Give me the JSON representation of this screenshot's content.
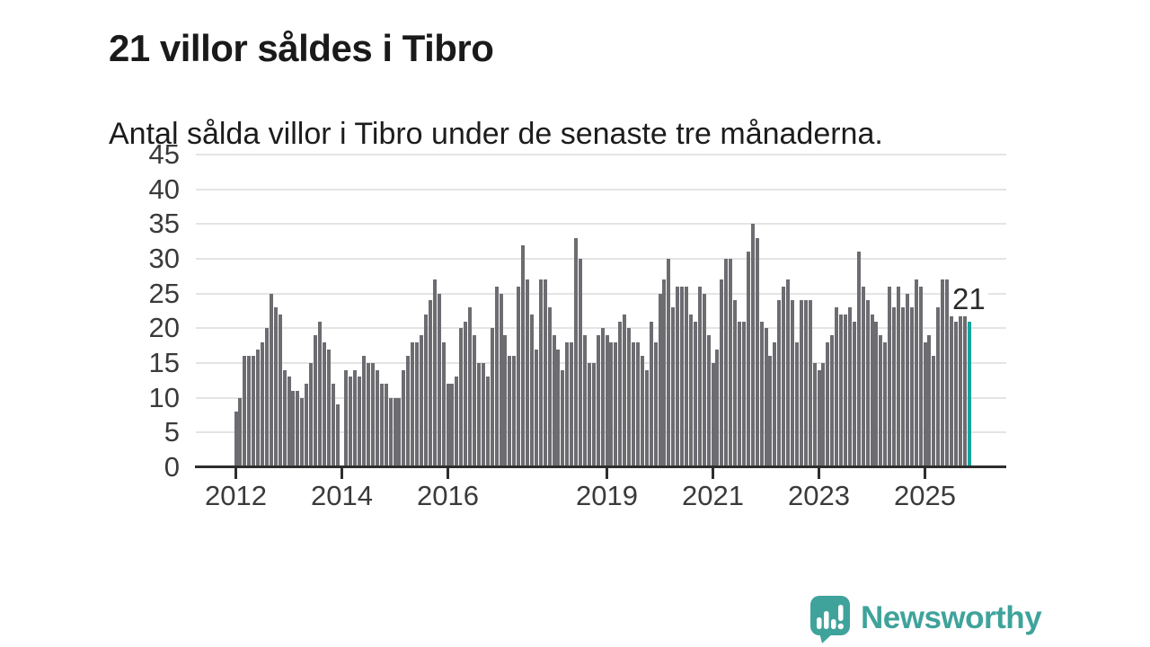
{
  "header": {
    "title": "21 villor såldes i Tibro",
    "subtitle": "Antal sålda villor i Tibro under de senaste tre månaderna."
  },
  "chart_data": {
    "type": "bar",
    "title": "21 villor såldes i Tibro",
    "subtitle": "Antal sålda villor i Tibro under de senaste tre månaderna.",
    "frequency": "monthly-rolling-3-months",
    "x_start": "2012-01",
    "x_end": "2025-11",
    "ylim": [
      0,
      45
    ],
    "grid": true,
    "y_ticks": [
      0,
      5,
      10,
      15,
      20,
      25,
      30,
      35,
      40,
      45
    ],
    "x_ticks": [
      {
        "label": "2012",
        "month_index": 0
      },
      {
        "label": "2014",
        "month_index": 24
      },
      {
        "label": "2016",
        "month_index": 48
      },
      {
        "label": "2019",
        "month_index": 84
      },
      {
        "label": "2021",
        "month_index": 108
      },
      {
        "label": "2023",
        "month_index": 132
      },
      {
        "label": "2025",
        "month_index": 156
      }
    ],
    "values": [
      8,
      10,
      16,
      16,
      16,
      17,
      18,
      20,
      25,
      23,
      22,
      14,
      13,
      11,
      11,
      10,
      12,
      15,
      19,
      21,
      18,
      17,
      12,
      9,
      0,
      14,
      13,
      14,
      13,
      16,
      15,
      15,
      14,
      12,
      12,
      10,
      10,
      10,
      14,
      16,
      18,
      18,
      19,
      22,
      24,
      27,
      25,
      18,
      12,
      12,
      13,
      20,
      21,
      23,
      19,
      15,
      15,
      13,
      20,
      26,
      25,
      19,
      16,
      16,
      26,
      32,
      27,
      22,
      17,
      27,
      27,
      23,
      19,
      17,
      14,
      18,
      18,
      33,
      30,
      19,
      15,
      15,
      19,
      20,
      19,
      18,
      18,
      21,
      22,
      20,
      18,
      18,
      16,
      14,
      21,
      18,
      25,
      27,
      30,
      23,
      26,
      26,
      26,
      22,
      21,
      26,
      25,
      19,
      15,
      17,
      27,
      30,
      30,
      24,
      21,
      21,
      31,
      35,
      33,
      21,
      20,
      16,
      18,
      24,
      26,
      27,
      24,
      18,
      24,
      24,
      24,
      15,
      14,
      15,
      18,
      19,
      23,
      22,
      22,
      23,
      21,
      31,
      26,
      24,
      22,
      21,
      19,
      18,
      26,
      23,
      26,
      23,
      25,
      23,
      27,
      26,
      18,
      19,
      16,
      23,
      27,
      27,
      22,
      21,
      22,
      22,
      21
    ],
    "highlight_last_bar": true,
    "last_value_label": "21",
    "colors": {
      "bar": "#6c6c71",
      "highlight": "#14a69e",
      "grid": "#e4e4e4",
      "axis": "#2e2e2e"
    }
  },
  "annotation": {
    "label": "21"
  },
  "branding": {
    "logo_text": "Newsworthy",
    "brand_color": "#3fa39b"
  }
}
